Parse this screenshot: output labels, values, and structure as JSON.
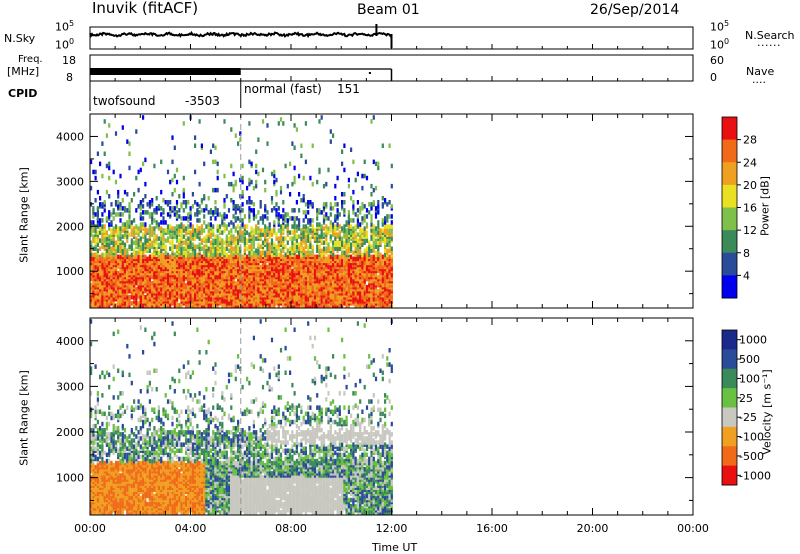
{
  "header": {
    "station": "Inuvik (fitACF)",
    "beam": "Beam 01",
    "date": "26/Sep/2014"
  },
  "panels": {
    "nsky_label": "N.Sky",
    "nsearch_label": "N.Search",
    "freq_label_1": "Freq.",
    "freq_label_2": "[MHz]",
    "nave_label": "Nave",
    "cpid_label": "CPID",
    "dots": "......",
    "dots_short": "....",
    "noise_ticks_left": [
      "10^5",
      "10^0"
    ],
    "noise_ticks_right": [
      "10^5",
      "10^0"
    ],
    "freq_ticks": [
      "18",
      "8"
    ],
    "nave_ticks": [
      "60",
      "0"
    ],
    "cpid_entries": [
      {
        "name": "twofsound",
        "id": "-3503"
      },
      {
        "name": "normal (fast)",
        "id": "151"
      }
    ]
  },
  "colors": {
    "power_scale": [
      "#0000ee",
      "#2a4a9a",
      "#3a8a5a",
      "#7fc04a",
      "#e8e020",
      "#f0a020",
      "#f06a1a",
      "#e81010"
    ],
    "velocity_scale": [
      "#e81010",
      "#f06a1a",
      "#f0a020",
      "#c8c8c0",
      "#6ac040",
      "#3a8a5a",
      "#2a4a9a",
      "#1a2a8a"
    ],
    "axis": "#000000",
    "separator": "#999999"
  },
  "chart_data": [
    {
      "type": "heatmap",
      "title": "",
      "xlabel": "Time UT",
      "ylabel": "Slant Range [km]",
      "x_ticks": [
        "00:00",
        "04:00",
        "08:00",
        "12:00",
        "16:00",
        "20:00",
        "00:00"
      ],
      "x_range_hours": [
        0,
        24
      ],
      "y_ticks": [
        1000,
        2000,
        3000,
        4000
      ],
      "ylim": [
        180,
        4500
      ],
      "data_extent_hours": [
        0,
        12
      ],
      "colorbar": {
        "label": "Power [dB]",
        "ticks": [
          "4",
          "8",
          "12",
          "16",
          "20",
          "24",
          "28"
        ],
        "range": [
          0,
          30
        ]
      }
    },
    {
      "type": "heatmap",
      "title": "",
      "xlabel": "Time UT",
      "ylabel": "Slant Range [km]",
      "x_ticks": [
        "00:00",
        "04:00",
        "08:00",
        "12:00",
        "16:00",
        "20:00",
        "00:00"
      ],
      "x_range_hours": [
        0,
        24
      ],
      "y_ticks": [
        1000,
        2000,
        3000,
        4000
      ],
      "ylim": [
        180,
        4500
      ],
      "data_extent_hours": [
        0,
        12
      ],
      "colorbar": {
        "label": "Velocity [m s⁻¹]",
        "ticks": [
          "1000",
          "500",
          "100",
          "25",
          "-25",
          "-100",
          "-500",
          "-1000"
        ]
      }
    }
  ]
}
